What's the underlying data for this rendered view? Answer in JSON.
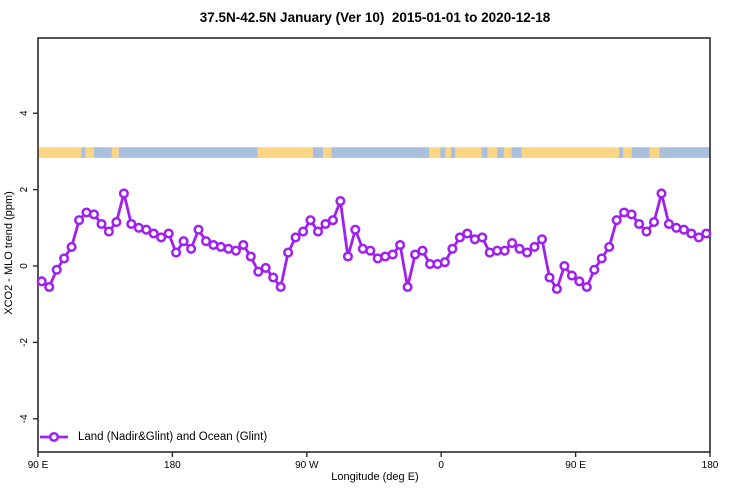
{
  "title": "37.5N-42.5N January (Ver 10)  2015-01-01 to 2020-12-18",
  "legend": {
    "label": "Land (Nadir&Glint) and Ocean (Glint)"
  },
  "colors": {
    "series": "#A020F0",
    "marker_fill": "#ffffff",
    "land_band": "#FBD583",
    "ocean_band": "#AABFDB",
    "frame": "#2b2b2b",
    "text": "#000000"
  },
  "chart_data": {
    "type": "line",
    "title": "37.5N-42.5N January (Ver 10)  2015-01-01 to 2020-12-18",
    "xlabel": "Longitude (deg E)",
    "ylabel": "XCO2 - MLO trend (ppm)",
    "xlim": [
      90,
      540
    ],
    "ylim": [
      -4.87,
      5.97
    ],
    "grid": false,
    "legend_position": "bottom-left",
    "marker": "open-circle",
    "x_ticks": [
      {
        "value": 90,
        "label": "90 E"
      },
      {
        "value": 180,
        "label": "180"
      },
      {
        "value": 270,
        "label": "90 W"
      },
      {
        "value": 360,
        "label": "0"
      },
      {
        "value": 450,
        "label": "90 E"
      },
      {
        "value": 540,
        "label": "180"
      }
    ],
    "y_ticks": [
      {
        "value": -4,
        "label": "-4"
      },
      {
        "value": -2,
        "label": "-2"
      },
      {
        "value": 0,
        "label": "0"
      },
      {
        "value": 2,
        "label": "2"
      },
      {
        "value": 4,
        "label": "4"
      }
    ],
    "series": [
      {
        "name": "Land (Nadir&Glint) and Ocean (Glint)",
        "x": [
          92.5,
          97.5,
          102.5,
          107.5,
          112.5,
          117.5,
          122.5,
          127.5,
          132.5,
          137.5,
          142.5,
          147.5,
          152.5,
          157.5,
          162.5,
          167.5,
          172.5,
          177.5,
          182.5,
          187.5,
          192.5,
          197.5,
          202.5,
          207.5,
          212.5,
          217.5,
          222.5,
          227.5,
          232.5,
          237.5,
          242.5,
          247.5,
          252.5,
          257.5,
          262.5,
          267.5,
          272.5,
          277.5,
          282.5,
          287.5,
          292.5,
          297.5,
          302.5,
          307.5,
          312.5,
          317.5,
          322.5,
          327.5,
          332.5,
          337.5,
          342.5,
          347.5,
          352.5,
          357.5,
          362.5,
          367.5,
          372.5,
          377.5,
          382.5,
          387.5,
          392.5,
          397.5,
          402.5,
          407.5,
          412.5,
          417.5,
          422.5,
          427.5,
          432.5,
          437.5,
          442.5,
          447.5,
          452.5,
          457.5,
          462.5,
          467.5,
          472.5,
          477.5,
          482.5,
          487.5,
          492.5,
          497.5,
          502.5,
          507.5,
          512.5,
          517.5,
          522.5,
          527.5,
          532.5,
          537.5
        ],
        "y": [
          -0.4,
          -0.55,
          -0.1,
          0.2,
          0.5,
          1.2,
          1.4,
          1.35,
          1.1,
          0.9,
          1.15,
          1.9,
          1.1,
          1.0,
          0.95,
          0.85,
          0.75,
          0.85,
          0.35,
          0.65,
          0.45,
          0.95,
          0.65,
          0.55,
          0.5,
          0.45,
          0.4,
          0.55,
          0.25,
          -0.15,
          -0.05,
          -0.3,
          -0.55,
          0.35,
          0.75,
          0.9,
          1.2,
          0.9,
          1.1,
          1.2,
          1.7,
          0.25,
          0.95,
          0.45,
          0.4,
          0.2,
          0.25,
          0.3,
          0.55,
          -0.55,
          0.3,
          0.4,
          0.05,
          0.05,
          0.1,
          0.45,
          0.75,
          0.85,
          0.7,
          0.75,
          0.35,
          0.4,
          0.4,
          0.6,
          0.45,
          0.35,
          0.5,
          0.7,
          -0.3,
          -0.6,
          0.0,
          -0.25,
          -0.4,
          -0.55,
          -0.1,
          0.2,
          0.5,
          1.2,
          1.4,
          1.35,
          1.1,
          0.9,
          1.15,
          1.9,
          1.1,
          1.0,
          0.95,
          0.85,
          0.75,
          0.85
        ]
      }
    ],
    "map_band": {
      "description": "land/ocean strip drawn across the plot near y=3",
      "y_range": [
        2.83,
        3.11
      ],
      "segments": [
        {
          "from": 90,
          "to": 119,
          "type": "land"
        },
        {
          "from": 119,
          "to": 122,
          "type": "ocean"
        },
        {
          "from": 122,
          "to": 127.5,
          "type": "land"
        },
        {
          "from": 127.5,
          "to": 139.5,
          "type": "ocean"
        },
        {
          "from": 139.5,
          "to": 144,
          "type": "land"
        },
        {
          "from": 144,
          "to": 237,
          "type": "ocean"
        },
        {
          "from": 237,
          "to": 274,
          "type": "land"
        },
        {
          "from": 274,
          "to": 281,
          "type": "ocean"
        },
        {
          "from": 281,
          "to": 286.5,
          "type": "land"
        },
        {
          "from": 286.5,
          "to": 352,
          "type": "ocean"
        },
        {
          "from": 352,
          "to": 359.5,
          "type": "land"
        },
        {
          "from": 359.5,
          "to": 363,
          "type": "ocean"
        },
        {
          "from": 363,
          "to": 366.5,
          "type": "land"
        },
        {
          "from": 366.5,
          "to": 369.5,
          "type": "ocean"
        },
        {
          "from": 369.5,
          "to": 387,
          "type": "land"
        },
        {
          "from": 387,
          "to": 391,
          "type": "ocean"
        },
        {
          "from": 391,
          "to": 397.5,
          "type": "land"
        },
        {
          "from": 397.5,
          "to": 402,
          "type": "ocean"
        },
        {
          "from": 402,
          "to": 407,
          "type": "land"
        },
        {
          "from": 407,
          "to": 414,
          "type": "ocean"
        },
        {
          "from": 414,
          "to": 479,
          "type": "land"
        },
        {
          "from": 479,
          "to": 482,
          "type": "ocean"
        },
        {
          "from": 482,
          "to": 487.5,
          "type": "land"
        },
        {
          "from": 487.5,
          "to": 499.5,
          "type": "ocean"
        },
        {
          "from": 499.5,
          "to": 506,
          "type": "land"
        },
        {
          "from": 506,
          "to": 540,
          "type": "ocean"
        }
      ]
    }
  }
}
